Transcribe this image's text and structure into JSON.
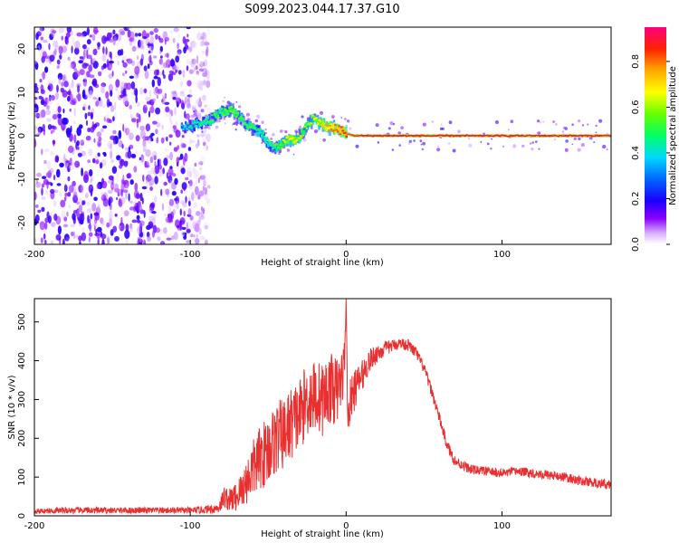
{
  "figure": {
    "title": "S099.2023.044.17.37.G10"
  },
  "chart_data": [
    {
      "type": "heatmap",
      "xlabel": "Height of straight line (km)",
      "ylabel": "Frequency (Hz)",
      "xlim": [
        -200,
        170
      ],
      "ylim": [
        -25,
        25
      ],
      "x_ticks": [
        -200,
        -100,
        0,
        100
      ],
      "x_tick_labels": [
        "-200",
        "-100",
        "0",
        "100"
      ],
      "y_ticks": [
        -20,
        -10,
        0,
        10,
        20
      ],
      "y_tick_labels": [
        "-20",
        "-10",
        "0",
        "10",
        "20"
      ],
      "colorbar": {
        "label": "Normalized spectral amplitude",
        "range": [
          0,
          0.95
        ],
        "ticks": [
          0.0,
          0.2,
          0.4,
          0.6,
          0.8
        ],
        "tick_labels": [
          "0.0",
          "0.2",
          "0.4",
          "0.6",
          "0.8"
        ]
      },
      "grid": false,
      "ridge": {
        "x": [
          -105,
          -98,
          -92,
          -86,
          -80,
          -74,
          -68,
          -62,
          -56,
          -50,
          -46,
          -42,
          -38,
          -34,
          -30,
          -26,
          -22,
          -18,
          -12,
          -6,
          0,
          5,
          10,
          40,
          80,
          120,
          170
        ],
        "freq": [
          2,
          2.5,
          3,
          4,
          5.5,
          6,
          4,
          2,
          1,
          -2,
          -3,
          -2,
          -1,
          -1,
          0,
          2,
          4,
          3,
          2,
          1.5,
          0.5,
          0,
          0,
          0,
          0,
          0,
          0
        ],
        "amplitude": [
          0.3,
          0.35,
          0.4,
          0.45,
          0.45,
          0.5,
          0.45,
          0.45,
          0.4,
          0.4,
          0.45,
          0.5,
          0.6,
          0.6,
          0.55,
          0.5,
          0.55,
          0.6,
          0.7,
          0.75,
          0.8,
          0.85,
          0.9,
          0.9,
          0.9,
          0.9,
          0.9
        ]
      },
      "noise_region": {
        "x_from": -200,
        "x_to": -100,
        "amplitude": 0.2
      }
    },
    {
      "type": "line",
      "xlabel": "Height of straight line (km)",
      "ylabel": "SNR (10 * v/v)",
      "xlim": [
        -200,
        170
      ],
      "ylim": [
        0,
        560
      ],
      "x_ticks": [
        -200,
        -100,
        0,
        100
      ],
      "x_tick_labels": [
        "-200",
        "-100",
        "0",
        "100"
      ],
      "y_ticks": [
        0,
        100,
        200,
        300,
        400,
        500
      ],
      "y_tick_labels": [
        "0",
        "100",
        "200",
        "300",
        "400",
        "500"
      ],
      "grid": false,
      "series": [
        {
          "color": "#e83030",
          "x": [
            -200,
            -180,
            -160,
            -140,
            -120,
            -100,
            -90,
            -82,
            -78,
            -75,
            -70,
            -65,
            -60,
            -55,
            -50,
            -45,
            -40,
            -35,
            -30,
            -25,
            -20,
            -15,
            -10,
            -6,
            -3,
            -1,
            0,
            1,
            3,
            6,
            10,
            15,
            20,
            25,
            30,
            35,
            40,
            45,
            50,
            55,
            60,
            65,
            70,
            80,
            90,
            100,
            110,
            120,
            130,
            140,
            150,
            160,
            170
          ],
          "y": [
            12,
            14,
            14,
            14,
            14,
            14,
            16,
            20,
            50,
            40,
            50,
            80,
            120,
            150,
            170,
            200,
            210,
            240,
            260,
            300,
            310,
            300,
            330,
            320,
            350,
            400,
            560,
            250,
            300,
            330,
            360,
            400,
            420,
            430,
            440,
            445,
            440,
            420,
            380,
            320,
            250,
            180,
            140,
            120,
            115,
            110,
            115,
            110,
            105,
            100,
            90,
            85,
            80
          ],
          "noise": [
            6,
            8,
            8,
            8,
            8,
            8,
            10,
            14,
            30,
            30,
            40,
            55,
            75,
            85,
            90,
            95,
            95,
            95,
            95,
            95,
            95,
            95,
            90,
            90,
            80,
            60,
            0,
            40,
            60,
            50,
            40,
            30,
            25,
            20,
            15,
            15,
            15,
            15,
            15,
            15,
            15,
            15,
            15,
            12,
            12,
            12,
            12,
            12,
            12,
            12,
            12,
            12,
            12
          ]
        }
      ]
    }
  ]
}
